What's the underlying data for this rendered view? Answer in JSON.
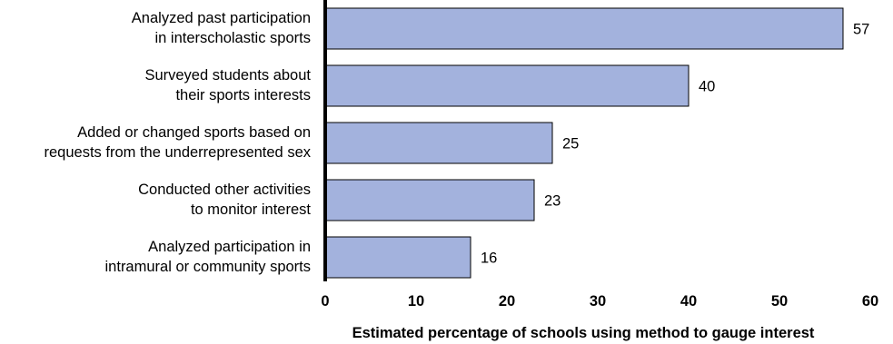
{
  "chart_data": {
    "type": "bar",
    "orientation": "horizontal",
    "categories": [
      [
        "Analyzed past participation",
        "in interscholastic sports"
      ],
      [
        "Surveyed students about",
        "their sports interests"
      ],
      [
        "Added or changed sports based on",
        "requests from the underrepresented sex"
      ],
      [
        "Conducted other activities",
        "to monitor interest"
      ],
      [
        "Analyzed participation in",
        "intramural or community sports"
      ]
    ],
    "values": [
      57,
      40,
      25,
      23,
      16
    ],
    "xlabel": "Estimated percentage of schools using method to gauge interest",
    "xlim": [
      0,
      60
    ],
    "xticks": [
      "0",
      "10",
      "20",
      "30",
      "40",
      "50",
      "60"
    ],
    "grid": false,
    "colors": {
      "bar_fill": "#a3b2dd",
      "bar_stroke": "#000000",
      "axis": "#000000"
    }
  }
}
